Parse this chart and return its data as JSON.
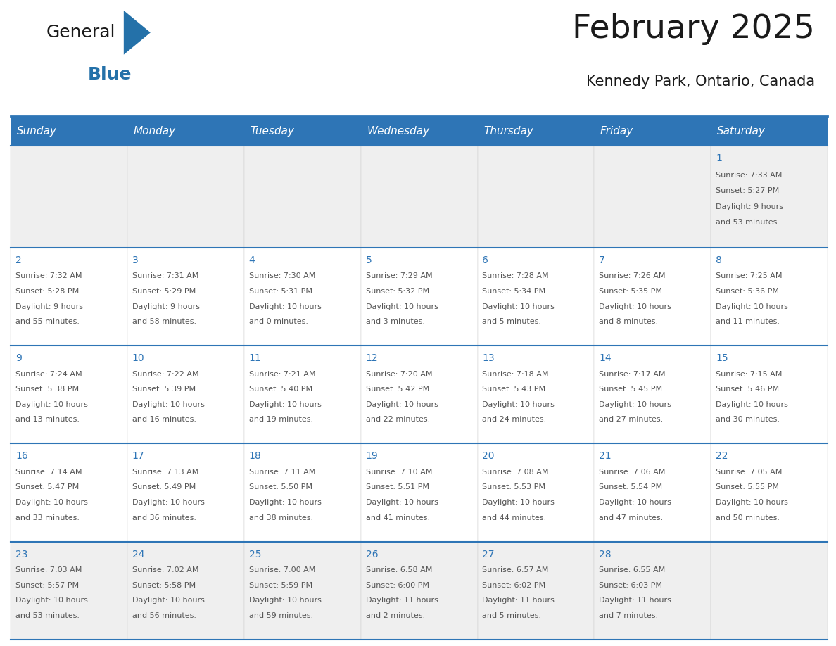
{
  "title": "February 2025",
  "subtitle": "Kennedy Park, Ontario, Canada",
  "header_color": "#2E75B6",
  "header_text_color": "#FFFFFF",
  "cell_bg_white": "#FFFFFF",
  "cell_bg_gray": "#EFEFEF",
  "day_number_color": "#2E75B6",
  "body_text_color": "#555555",
  "border_color": "#2E75B6",
  "weekdays": [
    "Sunday",
    "Monday",
    "Tuesday",
    "Wednesday",
    "Thursday",
    "Friday",
    "Saturday"
  ],
  "days": [
    {
      "day": 1,
      "col": 6,
      "row": 0,
      "sunrise": "7:33 AM",
      "sunset": "5:27 PM",
      "daylight": "9 hours and 53 minutes."
    },
    {
      "day": 2,
      "col": 0,
      "row": 1,
      "sunrise": "7:32 AM",
      "sunset": "5:28 PM",
      "daylight": "9 hours and 55 minutes."
    },
    {
      "day": 3,
      "col": 1,
      "row": 1,
      "sunrise": "7:31 AM",
      "sunset": "5:29 PM",
      "daylight": "9 hours and 58 minutes."
    },
    {
      "day": 4,
      "col": 2,
      "row": 1,
      "sunrise": "7:30 AM",
      "sunset": "5:31 PM",
      "daylight": "10 hours and 0 minutes."
    },
    {
      "day": 5,
      "col": 3,
      "row": 1,
      "sunrise": "7:29 AM",
      "sunset": "5:32 PM",
      "daylight": "10 hours and 3 minutes."
    },
    {
      "day": 6,
      "col": 4,
      "row": 1,
      "sunrise": "7:28 AM",
      "sunset": "5:34 PM",
      "daylight": "10 hours and 5 minutes."
    },
    {
      "day": 7,
      "col": 5,
      "row": 1,
      "sunrise": "7:26 AM",
      "sunset": "5:35 PM",
      "daylight": "10 hours and 8 minutes."
    },
    {
      "day": 8,
      "col": 6,
      "row": 1,
      "sunrise": "7:25 AM",
      "sunset": "5:36 PM",
      "daylight": "10 hours and 11 minutes."
    },
    {
      "day": 9,
      "col": 0,
      "row": 2,
      "sunrise": "7:24 AM",
      "sunset": "5:38 PM",
      "daylight": "10 hours and 13 minutes."
    },
    {
      "day": 10,
      "col": 1,
      "row": 2,
      "sunrise": "7:22 AM",
      "sunset": "5:39 PM",
      "daylight": "10 hours and 16 minutes."
    },
    {
      "day": 11,
      "col": 2,
      "row": 2,
      "sunrise": "7:21 AM",
      "sunset": "5:40 PM",
      "daylight": "10 hours and 19 minutes."
    },
    {
      "day": 12,
      "col": 3,
      "row": 2,
      "sunrise": "7:20 AM",
      "sunset": "5:42 PM",
      "daylight": "10 hours and 22 minutes."
    },
    {
      "day": 13,
      "col": 4,
      "row": 2,
      "sunrise": "7:18 AM",
      "sunset": "5:43 PM",
      "daylight": "10 hours and 24 minutes."
    },
    {
      "day": 14,
      "col": 5,
      "row": 2,
      "sunrise": "7:17 AM",
      "sunset": "5:45 PM",
      "daylight": "10 hours and 27 minutes."
    },
    {
      "day": 15,
      "col": 6,
      "row": 2,
      "sunrise": "7:15 AM",
      "sunset": "5:46 PM",
      "daylight": "10 hours and 30 minutes."
    },
    {
      "day": 16,
      "col": 0,
      "row": 3,
      "sunrise": "7:14 AM",
      "sunset": "5:47 PM",
      "daylight": "10 hours and 33 minutes."
    },
    {
      "day": 17,
      "col": 1,
      "row": 3,
      "sunrise": "7:13 AM",
      "sunset": "5:49 PM",
      "daylight": "10 hours and 36 minutes."
    },
    {
      "day": 18,
      "col": 2,
      "row": 3,
      "sunrise": "7:11 AM",
      "sunset": "5:50 PM",
      "daylight": "10 hours and 38 minutes."
    },
    {
      "day": 19,
      "col": 3,
      "row": 3,
      "sunrise": "7:10 AM",
      "sunset": "5:51 PM",
      "daylight": "10 hours and 41 minutes."
    },
    {
      "day": 20,
      "col": 4,
      "row": 3,
      "sunrise": "7:08 AM",
      "sunset": "5:53 PM",
      "daylight": "10 hours and 44 minutes."
    },
    {
      "day": 21,
      "col": 5,
      "row": 3,
      "sunrise": "7:06 AM",
      "sunset": "5:54 PM",
      "daylight": "10 hours and 47 minutes."
    },
    {
      "day": 22,
      "col": 6,
      "row": 3,
      "sunrise": "7:05 AM",
      "sunset": "5:55 PM",
      "daylight": "10 hours and 50 minutes."
    },
    {
      "day": 23,
      "col": 0,
      "row": 4,
      "sunrise": "7:03 AM",
      "sunset": "5:57 PM",
      "daylight": "10 hours and 53 minutes."
    },
    {
      "day": 24,
      "col": 1,
      "row": 4,
      "sunrise": "7:02 AM",
      "sunset": "5:58 PM",
      "daylight": "10 hours and 56 minutes."
    },
    {
      "day": 25,
      "col": 2,
      "row": 4,
      "sunrise": "7:00 AM",
      "sunset": "5:59 PM",
      "daylight": "10 hours and 59 minutes."
    },
    {
      "day": 26,
      "col": 3,
      "row": 4,
      "sunrise": "6:58 AM",
      "sunset": "6:00 PM",
      "daylight": "11 hours and 2 minutes."
    },
    {
      "day": 27,
      "col": 4,
      "row": 4,
      "sunrise": "6:57 AM",
      "sunset": "6:02 PM",
      "daylight": "11 hours and 5 minutes."
    },
    {
      "day": 28,
      "col": 5,
      "row": 4,
      "sunrise": "6:55 AM",
      "sunset": "6:03 PM",
      "daylight": "11 hours and 7 minutes."
    }
  ],
  "logo_general_color": "#1a1a1a",
  "logo_blue_color": "#2471A9",
  "num_rows": 5,
  "title_fontsize": 34,
  "subtitle_fontsize": 15,
  "header_fontsize": 11,
  "day_number_fontsize": 10,
  "cell_text_fontsize": 8
}
